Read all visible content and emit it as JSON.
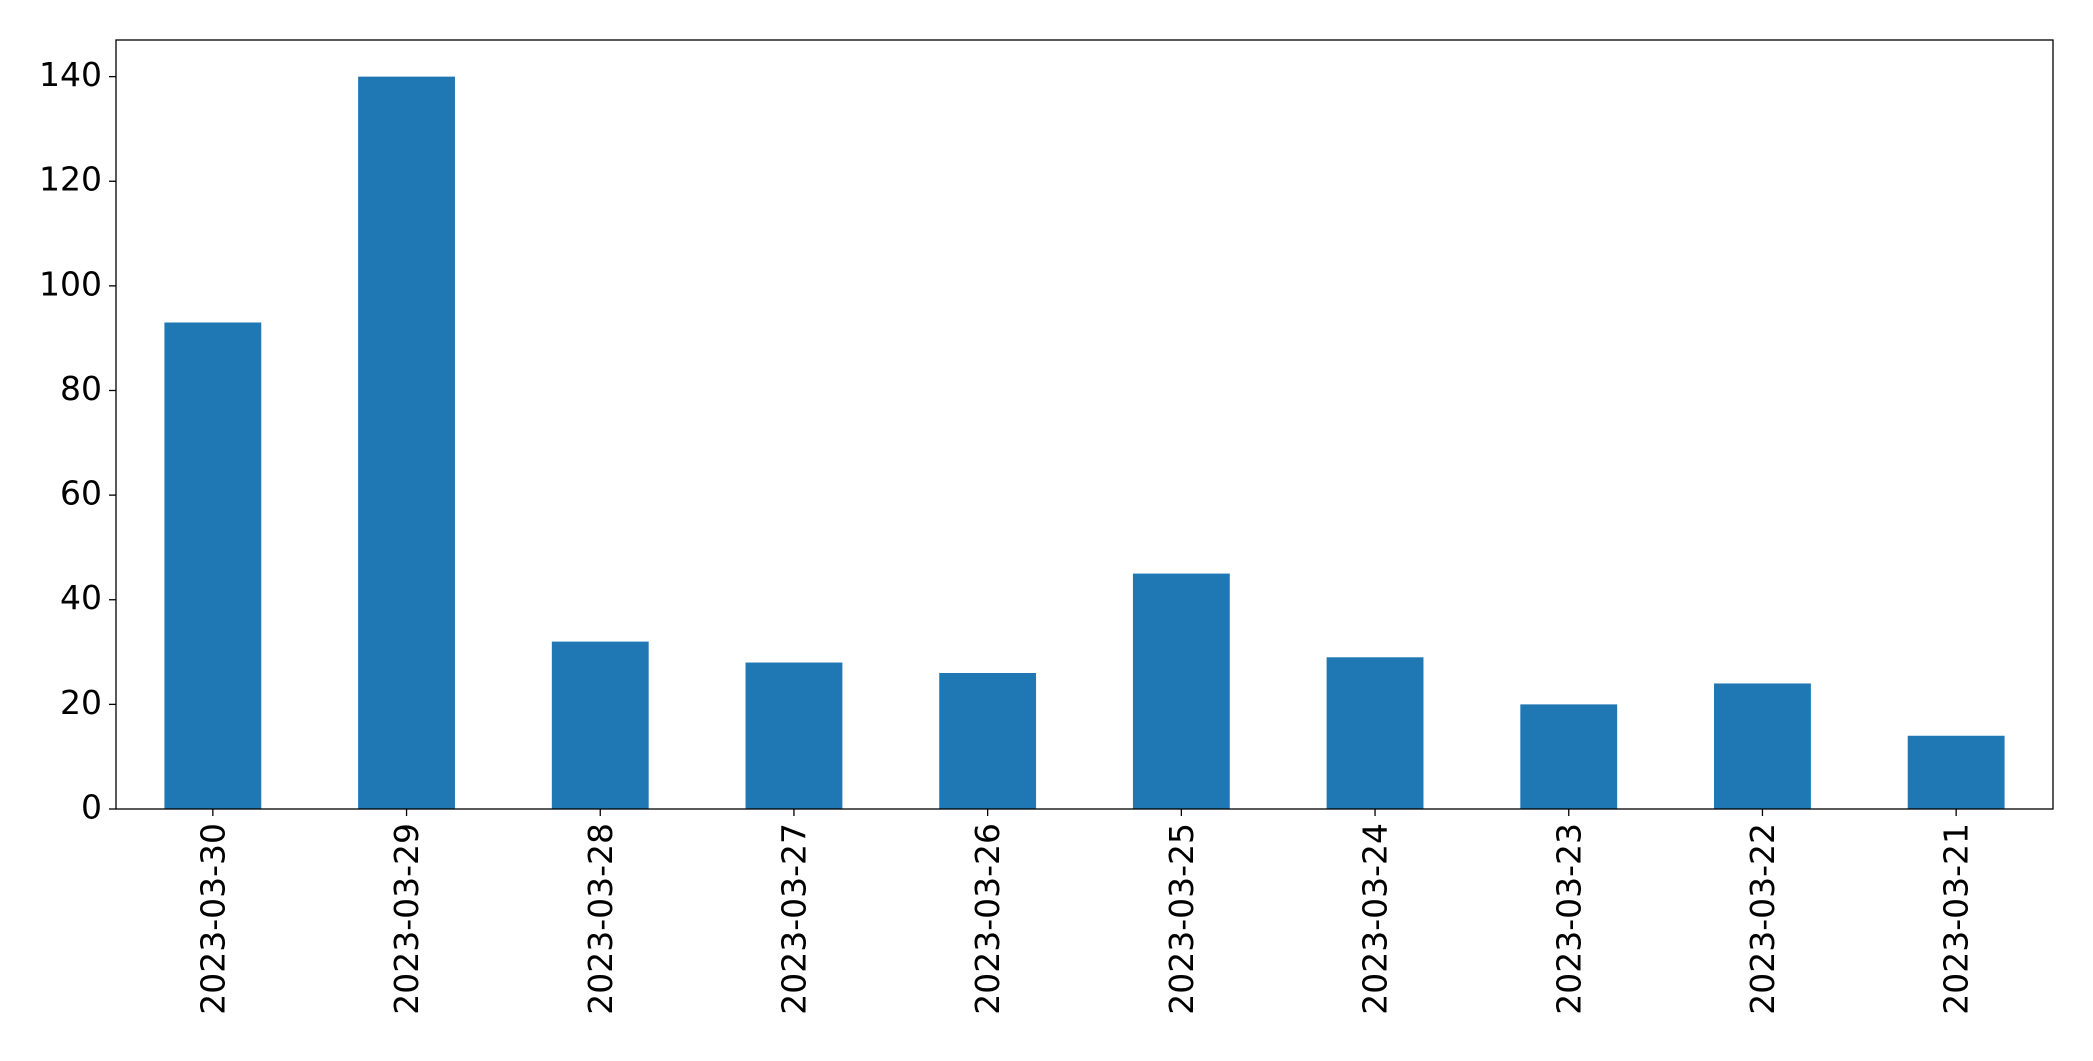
{
  "chart_data": {
    "type": "bar",
    "categories": [
      "2023-03-30",
      "2023-03-29",
      "2023-03-28",
      "2023-03-27",
      "2023-03-26",
      "2023-03-25",
      "2023-03-24",
      "2023-03-23",
      "2023-03-22",
      "2023-03-21"
    ],
    "values": [
      93,
      140,
      32,
      28,
      26,
      45,
      29,
      20,
      24,
      14
    ],
    "color": "#1f77b4",
    "ylim": [
      0,
      147
    ],
    "yticks": [
      0,
      20,
      40,
      60,
      80,
      100,
      120,
      140
    ],
    "grid": false
  }
}
